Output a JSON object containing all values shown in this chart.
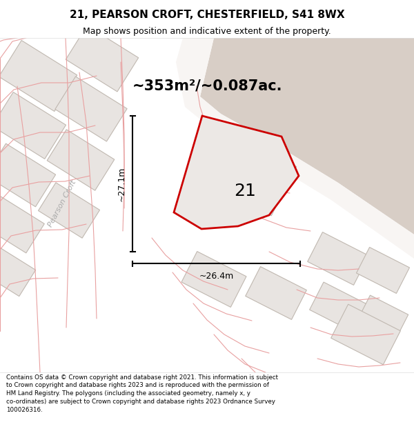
{
  "title_line1": "21, PEARSON CROFT, CHESTERFIELD, S41 8WX",
  "title_line2": "Map shows position and indicative extent of the property.",
  "area_text": "~353m²/~0.087ac.",
  "dim_vertical": "~27.1m",
  "dim_horizontal": "~26.4m",
  "plot_number": "21",
  "road_label": "Pearson Croft",
  "footer_text": "Contains OS data © Crown copyright and database right 2021. This information is subject to Crown copyright and database rights 2023 and is reproduced with the permission of HM Land Registry. The polygons (including the associated geometry, namely x, y co-ordinates) are subject to Crown copyright and database rights 2023 Ordnance Survey 100026316.",
  "map_bg": "#f0ebe8",
  "building_fill": "#e8e4e1",
  "building_edge": "#c0b8b0",
  "plot_fill": "#e8e4e1",
  "plot_stroke": "#cc0000",
  "pink_line_color": "#e8a0a0",
  "dim_line_color": "#111111",
  "title_color": "#000000",
  "footer_color": "#000000",
  "tan_fill": "#d8cec6",
  "road_fill": "#e8e2de",
  "white_fill": "#f8f5f3"
}
